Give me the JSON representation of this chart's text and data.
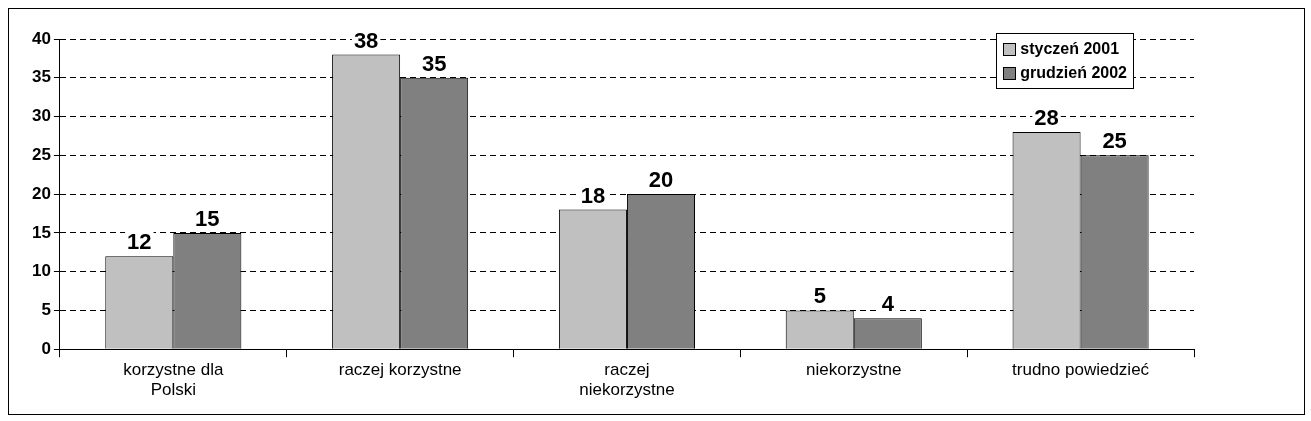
{
  "chart_data": {
    "type": "bar",
    "categories": [
      "korzystne dla Polski",
      "raczej korzystne",
      "raczej niekorzystne",
      "niekorzystne",
      "trudno powiedzieć"
    ],
    "series": [
      {
        "name": "styczeń 2001",
        "color": "#c0c0c0",
        "values": [
          12,
          38,
          18,
          5,
          28
        ]
      },
      {
        "name": "grudzień 2002",
        "color": "#808080",
        "values": [
          15,
          35,
          20,
          4,
          25
        ]
      }
    ],
    "ylim": [
      0,
      40
    ],
    "yticks": [
      0,
      5,
      10,
      15,
      20,
      25,
      30,
      35,
      40
    ],
    "grid": "y",
    "legend": "top right",
    "data_labels": true
  }
}
